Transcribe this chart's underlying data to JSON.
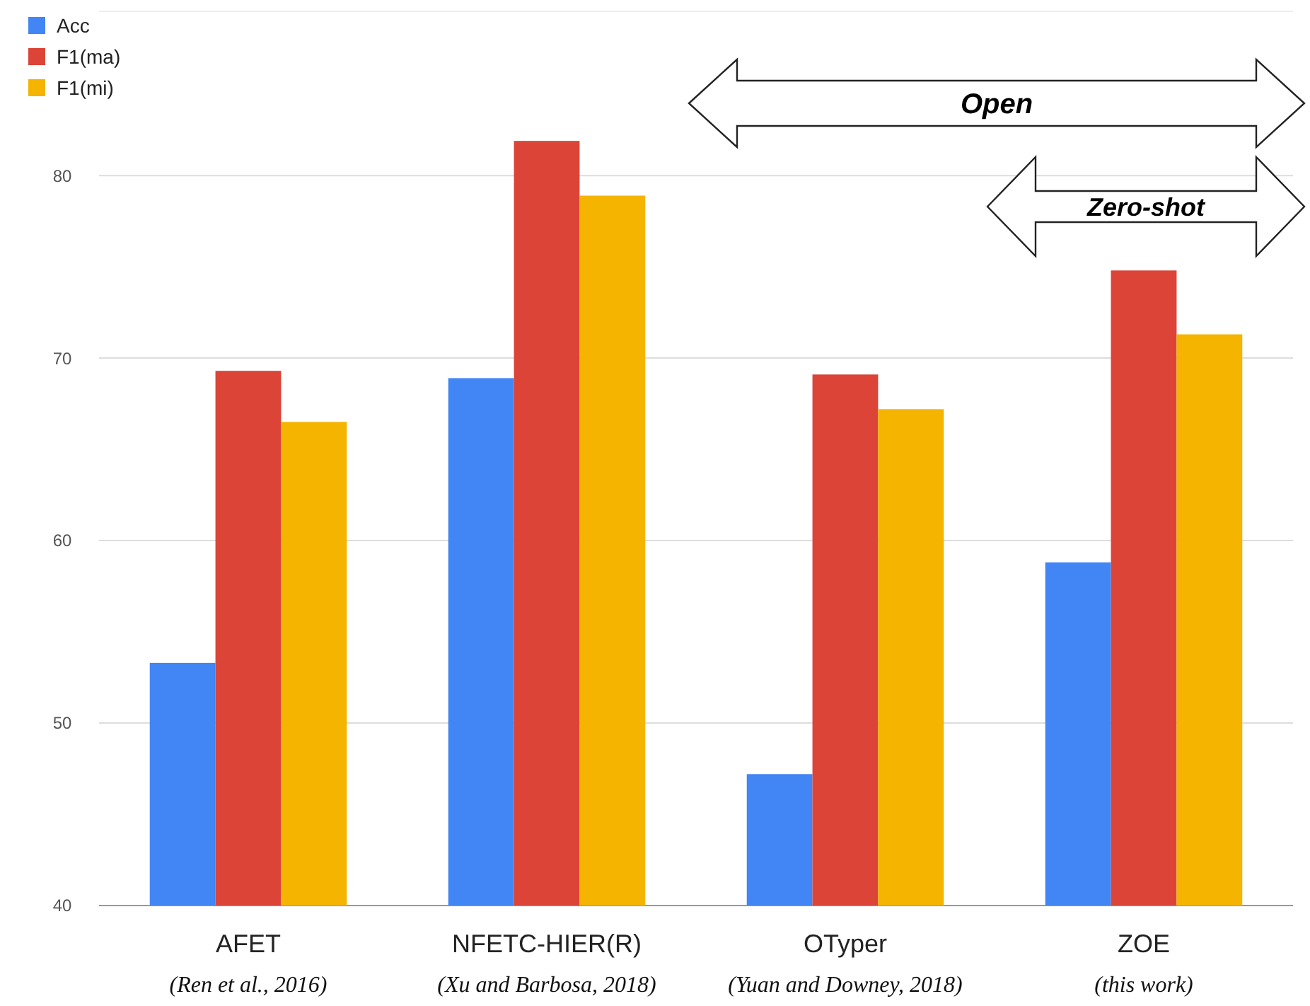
{
  "chart_data": {
    "type": "bar",
    "categories": [
      "AFET\n(Ren et al., 2016)",
      "NFETC-HIER(R)\n(Xu and Barbosa, 2018)",
      "OTyper\n(Yuan and Downey, 2018)",
      "ZOE\n(this work)"
    ],
    "series": [
      {
        "name": "Acc",
        "color": "#4285f4",
        "values": [
          53.3,
          68.9,
          47.2,
          58.8
        ]
      },
      {
        "name": "F1(ma)",
        "color": "#db4437",
        "values": [
          69.3,
          81.9,
          69.1,
          74.8
        ]
      },
      {
        "name": "F1(mi)",
        "color": "#f4b400",
        "values": [
          66.5,
          78.9,
          67.2,
          71.3
        ]
      }
    ],
    "ylim": [
      40,
      89
    ],
    "yticks": [
      40,
      50,
      60,
      70,
      80
    ],
    "grid": "y",
    "legend": "top left",
    "annotations": [
      "Open",
      "Zero-shot"
    ]
  }
}
